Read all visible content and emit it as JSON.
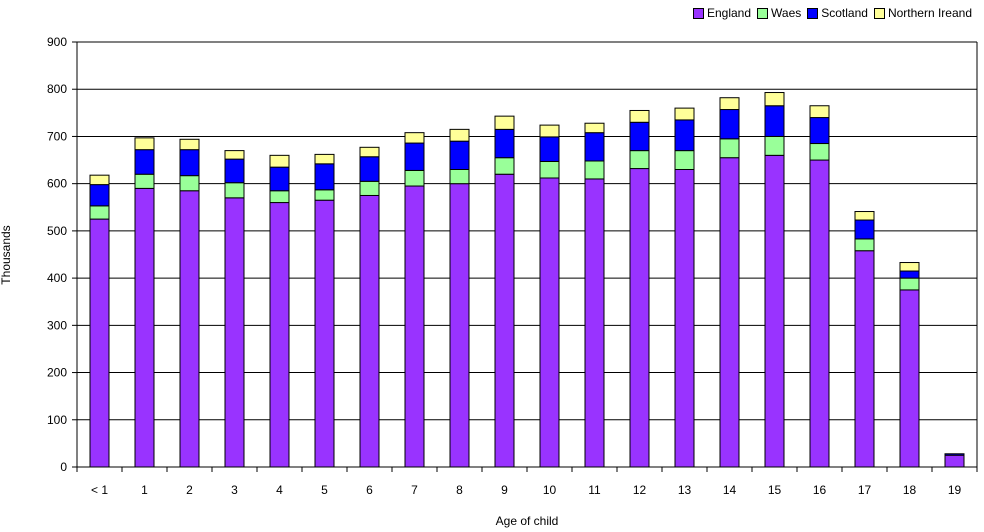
{
  "chart_data": {
    "type": "bar",
    "stacked": true,
    "title": "",
    "xlabel": "Age of child",
    "ylabel": "Thousands",
    "ylim": [
      0,
      900
    ],
    "yticks": [
      0,
      100,
      200,
      300,
      400,
      500,
      600,
      700,
      800,
      900
    ],
    "grid": true,
    "legend_position": "top-right",
    "categories": [
      "< 1",
      "1",
      "2",
      "3",
      "4",
      "5",
      "6",
      "7",
      "8",
      "9",
      "10",
      "11",
      "12",
      "13",
      "14",
      "15",
      "16",
      "17",
      "18",
      "19"
    ],
    "series": [
      {
        "name": "England",
        "color": "#9933ff",
        "values": [
          525,
          590,
          585,
          570,
          560,
          565,
          575,
          595,
          600,
          620,
          612,
          610,
          632,
          630,
          655,
          660,
          650,
          458,
          375,
          25
        ]
      },
      {
        "name": "Waes",
        "color": "#99ff99",
        "values": [
          28,
          30,
          32,
          32,
          25,
          22,
          30,
          33,
          30,
          35,
          35,
          38,
          38,
          40,
          40,
          40,
          35,
          25,
          25,
          0
        ]
      },
      {
        "name": "Scotland",
        "color": "#0000ff",
        "values": [
          45,
          52,
          55,
          50,
          50,
          55,
          52,
          58,
          60,
          60,
          52,
          60,
          60,
          65,
          62,
          65,
          55,
          40,
          15,
          3
        ]
      },
      {
        "name": "Northern Ireand",
        "color": "#ffff99",
        "values": [
          20,
          25,
          22,
          18,
          25,
          20,
          20,
          22,
          25,
          28,
          25,
          20,
          25,
          25,
          25,
          28,
          25,
          18,
          18,
          0
        ]
      }
    ]
  }
}
